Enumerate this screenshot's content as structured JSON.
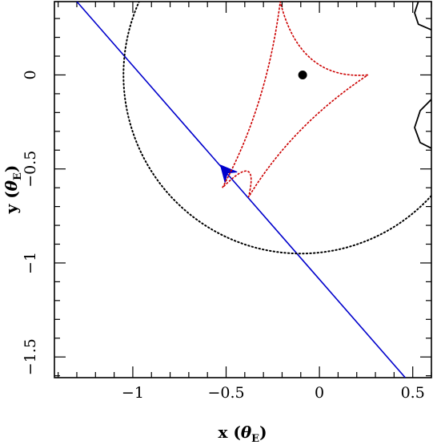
{
  "chart_data": {
    "type": "scatter",
    "title": "",
    "xlabel": {
      "main": "x",
      "unit_symbol": "θ",
      "unit_subscript": "E"
    },
    "ylabel": {
      "main": "y",
      "unit_symbol": "θ",
      "unit_subscript": "E"
    },
    "xlim": [
      -1.42,
      0.6
    ],
    "ylim": [
      -1.61,
      0.39
    ],
    "x_ticks": [
      {
        "value": -1,
        "label": "−1"
      },
      {
        "value": -0.5,
        "label": "−0.5"
      },
      {
        "value": 0,
        "label": "0"
      },
      {
        "value": 0.5,
        "label": "0.5"
      }
    ],
    "y_ticks": [
      {
        "value": 0,
        "label": "0"
      },
      {
        "value": -0.5,
        "label": "−0.5"
      },
      {
        "value": -1,
        "label": "−1"
      },
      {
        "value": -1.5,
        "label": "−1.5"
      }
    ],
    "minor_tick_step": 0.1,
    "grid": false,
    "series": [
      {
        "kind": "source-trajectory",
        "color": "#0000cc",
        "x": [
          -1.3,
          0.46
        ],
        "y": [
          0.39,
          -1.61
        ],
        "arrow": {
          "tip": [
            -0.53,
            -0.48
          ],
          "direction": "up-left"
        }
      },
      {
        "kind": "einstein-ring",
        "color": "#000000",
        "style": "dotted",
        "center": [
          -0.1,
          0.0
        ],
        "radius": 0.95
      },
      {
        "kind": "caustic",
        "color": "#cc0000",
        "cusps": [
          [
            0.26,
            0.0
          ],
          [
            -0.21,
            0.39
          ],
          [
            -0.52,
            -0.6
          ],
          [
            -0.38,
            -0.65
          ]
        ]
      },
      {
        "kind": "planetary-caustic",
        "color": "#000000",
        "fragments": [
          {
            "points": [
              [
                0.6,
                0.24
              ],
              [
                0.53,
                0.27
              ],
              [
                0.51,
                0.33
              ],
              [
                0.53,
                0.39
              ]
            ]
          },
          {
            "points": [
              [
                0.6,
                -0.13
              ],
              [
                0.54,
                -0.19
              ],
              [
                0.51,
                -0.28
              ],
              [
                0.54,
                -0.36
              ],
              [
                0.6,
                -0.39
              ]
            ]
          }
        ]
      },
      {
        "kind": "lens",
        "color": "#000000",
        "points": [
          [
            -0.09,
            0.0
          ]
        ]
      }
    ]
  }
}
